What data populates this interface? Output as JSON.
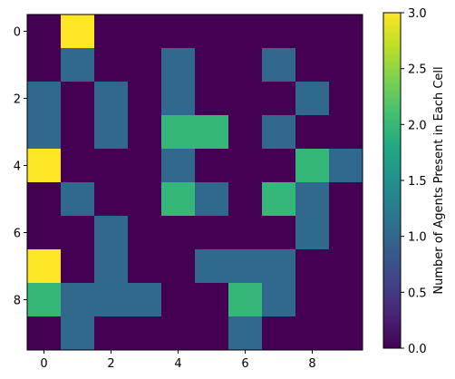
{
  "chart_data": {
    "type": "heatmap",
    "title": "",
    "xlabel": "",
    "ylabel": "",
    "rows": 10,
    "cols": 10,
    "values": [
      [
        0,
        3,
        0,
        0,
        0,
        0,
        0,
        0,
        0,
        0
      ],
      [
        0,
        1,
        0,
        0,
        1,
        0,
        0,
        1,
        0,
        0
      ],
      [
        1,
        0,
        1,
        0,
        1,
        0,
        0,
        0,
        1,
        0
      ],
      [
        1,
        0,
        1,
        0,
        2,
        2,
        0,
        1,
        0,
        0
      ],
      [
        3,
        0,
        0,
        0,
        1,
        0,
        0,
        0,
        2,
        1
      ],
      [
        0,
        1,
        0,
        0,
        2,
        1,
        0,
        2,
        1,
        0
      ],
      [
        0,
        0,
        1,
        0,
        0,
        0,
        0,
        0,
        1,
        0
      ],
      [
        3,
        0,
        1,
        0,
        0,
        1,
        1,
        1,
        0,
        0
      ],
      [
        2,
        1,
        1,
        1,
        0,
        0,
        2,
        1,
        0,
        0
      ],
      [
        0,
        1,
        0,
        0,
        0,
        0,
        1,
        0,
        0,
        0
      ]
    ],
    "x_ticks": [
      "0",
      "2",
      "4",
      "6",
      "8"
    ],
    "y_ticks": [
      "0",
      "2",
      "4",
      "6",
      "8"
    ],
    "colormap": "viridis",
    "colors": {
      "0": "#440154",
      "1": "#31688e",
      "2": "#35b779",
      "3": "#fde725"
    },
    "colorbar": {
      "label": "Number of Agents Present in Each Cell",
      "range": [
        0.0,
        3.0
      ],
      "ticks": [
        "0.0",
        "0.5",
        "1.0",
        "1.5",
        "2.0",
        "2.5",
        "3.0"
      ]
    }
  }
}
